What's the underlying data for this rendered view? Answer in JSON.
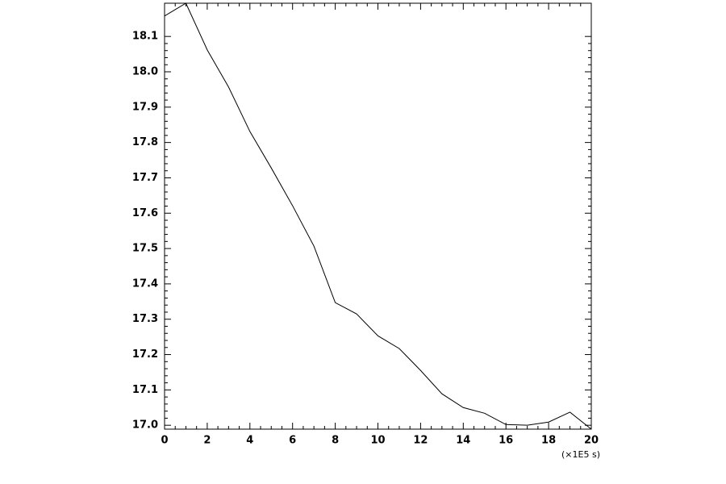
{
  "chart_data": {
    "type": "line",
    "x_unit_label": "(×1E5 s)",
    "x": [
      0,
      1,
      2,
      3,
      4,
      5,
      6,
      7,
      8,
      9,
      10,
      11,
      12,
      13,
      14,
      15,
      16,
      17,
      18,
      19,
      20
    ],
    "series": [
      {
        "color": "#000000",
        "values": [
          18.158,
          18.194,
          18.062,
          17.957,
          17.831,
          17.728,
          17.621,
          17.507,
          17.347,
          17.315,
          17.253,
          17.217,
          17.155,
          17.089,
          17.05,
          17.034,
          17.002,
          17.0,
          17.009,
          17.037,
          16.989
        ]
      }
    ],
    "xlim": [
      0,
      20
    ],
    "ylim": [
      16.989,
      18.194
    ],
    "xticks": [
      0,
      2,
      4,
      6,
      8,
      10,
      12,
      14,
      16,
      18,
      20
    ],
    "yticks": [
      {
        "value": 17,
        "label": "17.0"
      },
      17.1,
      17.2,
      17.3,
      17.4,
      17.5,
      17.6,
      17.7,
      17.8,
      17.9,
      {
        "value": 18,
        "label": "18.0"
      },
      18.1
    ]
  }
}
